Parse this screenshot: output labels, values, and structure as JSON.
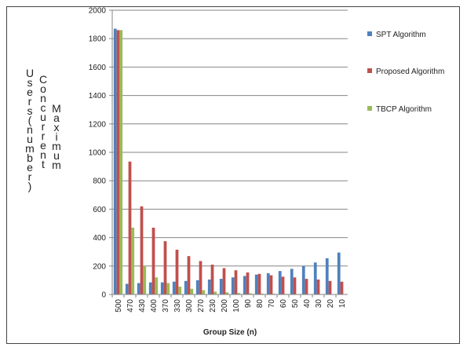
{
  "chart_data": {
    "type": "bar",
    "categories": [
      "500",
      "470",
      "430",
      "400",
      "370",
      "330",
      "300",
      "270",
      "230",
      "200",
      "100",
      "90",
      "80",
      "70",
      "60",
      "50",
      "40",
      "30",
      "20",
      "10"
    ],
    "series": [
      {
        "name": "SPT Algorithm",
        "color": "#4f81bd",
        "values": [
          1870,
          75,
          80,
          85,
          85,
          90,
          95,
          100,
          105,
          110,
          120,
          130,
          140,
          150,
          165,
          180,
          200,
          225,
          255,
          295
        ]
      },
      {
        "name": "Proposed Algorithm",
        "color": "#c0504d",
        "values": [
          1860,
          935,
          620,
          470,
          375,
          315,
          270,
          235,
          210,
          185,
          170,
          155,
          145,
          135,
          125,
          120,
          110,
          105,
          95,
          90
        ]
      },
      {
        "name": "TBCP Algorithm",
        "color": "#9bbb59",
        "values": [
          1860,
          470,
          200,
          120,
          80,
          55,
          40,
          30,
          20,
          15,
          10,
          8,
          6,
          5,
          4,
          3,
          3,
          2,
          2,
          1
        ]
      }
    ],
    "yticks": [
      "0",
      "200",
      "400",
      "600",
      "800",
      "1000",
      "1200",
      "1400",
      "1600",
      "1800",
      "2000"
    ],
    "ylim": [
      0,
      2000
    ],
    "xlabel": "Group Size (n)",
    "ylabel": "Maximum Concurrent Users (number)",
    "ylabel_columns": [
      "Users(number)",
      "Concurrent",
      "Maximum"
    ],
    "grid": true,
    "legend_position": "right"
  }
}
